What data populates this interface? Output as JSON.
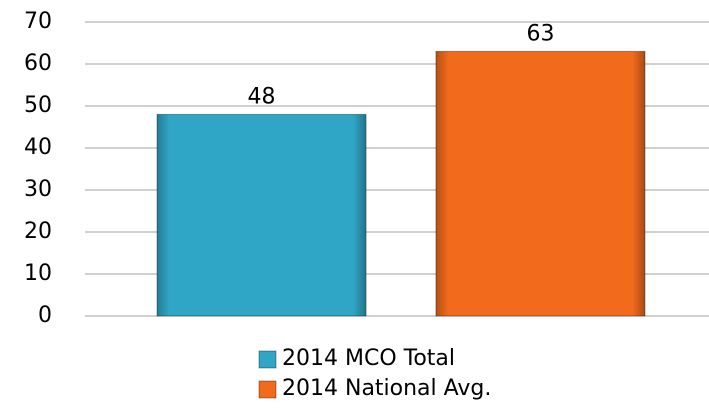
{
  "chart_data": {
    "type": "bar",
    "categories": [
      null
    ],
    "series": [
      {
        "name": "2014 MCO Total",
        "color": "#2fa6c6",
        "values": [
          48
        ]
      },
      {
        "name": "2014 National Avg.",
        "color": "#f26b1d",
        "values": [
          63
        ]
      }
    ],
    "ylim": [
      0,
      70
    ],
    "yticks": [
      0,
      10,
      20,
      30,
      40,
      50,
      60,
      70
    ],
    "grid": true,
    "legend": "bottom"
  }
}
